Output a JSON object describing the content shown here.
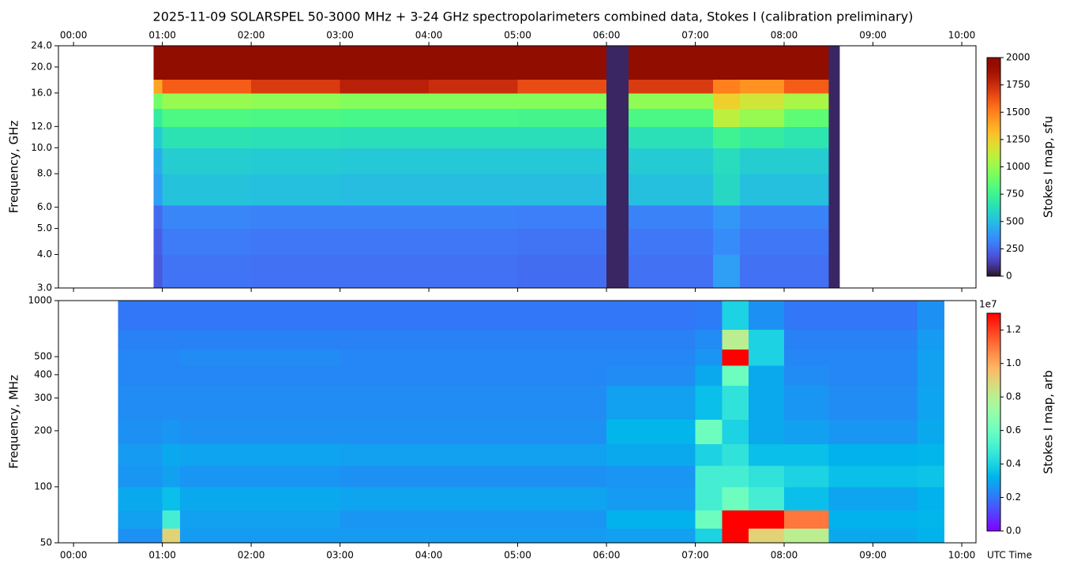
{
  "chart_data": [
    {
      "type": "heatmap",
      "title": "2025-11-09  SOLARSPEL  50-3000 MHz  +  3-24 GHz  spectropolarimeters combined data,  Stokes I  (calibration preliminary)",
      "ylabel": "Frequency, GHz",
      "xlim": [
        -0.17,
        10.16
      ],
      "xticks": [
        {
          "value": 0,
          "label": "00:00"
        },
        {
          "value": 1,
          "label": "01:00"
        },
        {
          "value": 2,
          "label": "02:00"
        },
        {
          "value": 3,
          "label": "03:00"
        },
        {
          "value": 4,
          "label": "04:00"
        },
        {
          "value": 5,
          "label": "05:00"
        },
        {
          "value": 6,
          "label": "06:00"
        },
        {
          "value": 7,
          "label": "07:00"
        },
        {
          "value": 8,
          "label": "08:00"
        },
        {
          "value": 9,
          "label": "09:00"
        },
        {
          "value": 10,
          "label": "10:00"
        }
      ],
      "xtick_side": "top",
      "ylim": [
        3,
        24
      ],
      "log_y": true,
      "yticks": [
        {
          "value": 3,
          "label": "3.0"
        },
        {
          "value": 4,
          "label": "4.0"
        },
        {
          "value": 5,
          "label": "5.0"
        },
        {
          "value": 6,
          "label": "6.0"
        },
        {
          "value": 8,
          "label": "8.0"
        },
        {
          "value": 10,
          "label": "10.0"
        },
        {
          "value": 12,
          "label": "12.0"
        },
        {
          "value": 16,
          "label": "16.0"
        },
        {
          "value": 20,
          "label": "20.0"
        },
        {
          "value": 24,
          "label": "24.0"
        }
      ],
      "x_edges": [
        0.9,
        1.0,
        2.0,
        3.0,
        4.0,
        5.0,
        6.0,
        6.25,
        7.2,
        7.5,
        8.0,
        8.5,
        8.62
      ],
      "y_edges": [
        3,
        4,
        5,
        6.1,
        8,
        10,
        12,
        14,
        16,
        18,
        24
      ],
      "z": [
        [
          200,
          220,
          250,
          400,
          450,
          550,
          700,
          900,
          1400,
          2000
        ],
        [
          280,
          300,
          330,
          520,
          560,
          650,
          800,
          1000,
          1600,
          2000
        ],
        [
          270,
          290,
          320,
          510,
          550,
          640,
          790,
          980,
          1700,
          2000
        ],
        [
          270,
          290,
          320,
          500,
          540,
          630,
          780,
          950,
          1800,
          2000
        ],
        [
          270,
          290,
          320,
          500,
          540,
          630,
          780,
          950,
          1750,
          2000
        ],
        [
          260,
          280,
          310,
          500,
          540,
          630,
          770,
          950,
          1650,
          2000
        ],
        [
          50,
          50,
          50,
          50,
          50,
          50,
          50,
          50,
          50,
          50
        ],
        [
          270,
          290,
          320,
          510,
          550,
          640,
          790,
          980,
          1700,
          2000
        ],
        [
          400,
          350,
          380,
          600,
          620,
          750,
          1100,
          1250,
          1500,
          2000
        ],
        [
          270,
          290,
          320,
          510,
          560,
          700,
          1000,
          1150,
          1450,
          2000
        ],
        [
          270,
          290,
          320,
          510,
          560,
          660,
          850,
          1050,
          1600,
          2000
        ],
        [
          50,
          50,
          50,
          50,
          50,
          50,
          50,
          50,
          50,
          50
        ]
      ],
      "colormap": "turbo",
      "clim": [
        0,
        2000
      ],
      "cbar_label": "Stokes I map, sfu",
      "cbar_ticks": [
        0,
        250,
        500,
        750,
        1000,
        1250,
        1500,
        1750,
        2000
      ]
    },
    {
      "type": "heatmap",
      "ylabel": "Frequency, MHz",
      "xlabel": "UTC Time",
      "xlim": [
        -0.17,
        10.16
      ],
      "xticks": [
        {
          "value": 0,
          "label": "00:00"
        },
        {
          "value": 1,
          "label": "01:00"
        },
        {
          "value": 2,
          "label": "02:00"
        },
        {
          "value": 3,
          "label": "03:00"
        },
        {
          "value": 4,
          "label": "04:00"
        },
        {
          "value": 5,
          "label": "05:00"
        },
        {
          "value": 6,
          "label": "06:00"
        },
        {
          "value": 7,
          "label": "07:00"
        },
        {
          "value": 8,
          "label": "08:00"
        },
        {
          "value": 9,
          "label": "09:00"
        },
        {
          "value": 10,
          "label": "10:00"
        }
      ],
      "xtick_side": "bottom",
      "ylim": [
        50,
        1000
      ],
      "log_y": true,
      "yticks": [
        50,
        100,
        200,
        300,
        400,
        500,
        1000
      ],
      "x_edges": [
        0.5,
        1.0,
        1.2,
        3.0,
        6.0,
        7.0,
        7.3,
        7.6,
        8.0,
        8.5,
        9.5,
        9.8
      ],
      "y_edges": [
        50,
        60,
        75,
        100,
        130,
        170,
        230,
        350,
        450,
        550,
        700,
        1000
      ],
      "z": [
        [
          2500000,
          2800000,
          3000000,
          2600000,
          2700000,
          2500000,
          2400000,
          2300000,
          2300000,
          2200000,
          2000000
        ],
        [
          9000000,
          5000000,
          3500000,
          2800000,
          3000000,
          2600000,
          2400000,
          2300000,
          2300000,
          2200000,
          2000000
        ],
        [
          2700000,
          2800000,
          3000000,
          2600000,
          2900000,
          2500000,
          2400000,
          2300000,
          2400000,
          2200000,
          2000000
        ],
        [
          2700000,
          2600000,
          2900000,
          2500000,
          2800000,
          2500000,
          2400000,
          2300000,
          2300000,
          2200000,
          2000000
        ],
        [
          2800000,
          3200000,
          2700000,
          2600000,
          3000000,
          3300000,
          2800000,
          2400000,
          2300000,
          2200000,
          2000000
        ],
        [
          4000000,
          6000000,
          5000000,
          5000000,
          4000000,
          6000000,
          3500000,
          3000000,
          2600000,
          2400000,
          2100000
        ],
        [
          13000000,
          13000000,
          6000000,
          5000000,
          4500000,
          4000000,
          4500000,
          6000000,
          13000000,
          8000000,
          4000000
        ],
        [
          9000000,
          13000000,
          5000000,
          4500000,
          3500000,
          3000000,
          3000000,
          3000000,
          4000000,
          4000000,
          2500000
        ],
        [
          8000000,
          11000000,
          3500000,
          4000000,
          3500000,
          2800000,
          2600000,
          2400000,
          2300000,
          2200000,
          2000000
        ],
        [
          3000000,
          3200000,
          2900000,
          3500000,
          3200000,
          2600000,
          2400000,
          2300000,
          2300000,
          2200000,
          2000000
        ],
        [
          3200000,
          3300000,
          3200000,
          3600000,
          3300000,
          3000000,
          2900000,
          2800000,
          2800000,
          2700000,
          2500000
        ]
      ],
      "colormap": "rainbow",
      "clim": [
        0,
        13000000
      ],
      "cbar_label": "Stokes I map, arb",
      "cbar_offset_label": "1e7",
      "cbar_ticks": [
        {
          "value": 0,
          "label": "0.0"
        },
        {
          "value": 2000000,
          "label": "0.2"
        },
        {
          "value": 4000000,
          "label": "0.4"
        },
        {
          "value": 6000000,
          "label": "0.6"
        },
        {
          "value": 8000000,
          "label": "0.8"
        },
        {
          "value": 10000000,
          "label": "1.0"
        },
        {
          "value": 12000000,
          "label": "1.2"
        }
      ]
    }
  ]
}
